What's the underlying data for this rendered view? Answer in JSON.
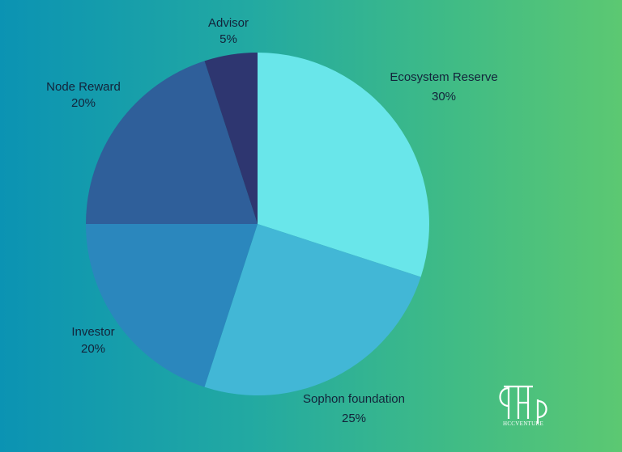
{
  "chart_data": {
    "type": "pie",
    "title": "",
    "slices": [
      {
        "label": "Ecosystem Reserve",
        "value": 30,
        "value_label": "30%",
        "color": "#69e6ea"
      },
      {
        "label": "Sophon foundation",
        "value": 25,
        "value_label": "25%",
        "color": "#42b7d6"
      },
      {
        "label": "Investor",
        "value": 20,
        "value_label": "20%",
        "color": "#2b87bd"
      },
      {
        "label": "Node Reward",
        "value": 20,
        "value_label": "20%",
        "color": "#2f5f9a"
      },
      {
        "label": "Advisor",
        "value": 5,
        "value_label": "5%",
        "color": "#2e3670"
      }
    ],
    "start_angle": "12 o'clock",
    "direction": "clockwise",
    "legend": "none"
  },
  "brand": {
    "name": "HCCVENTURE",
    "color": "#ffffff"
  }
}
